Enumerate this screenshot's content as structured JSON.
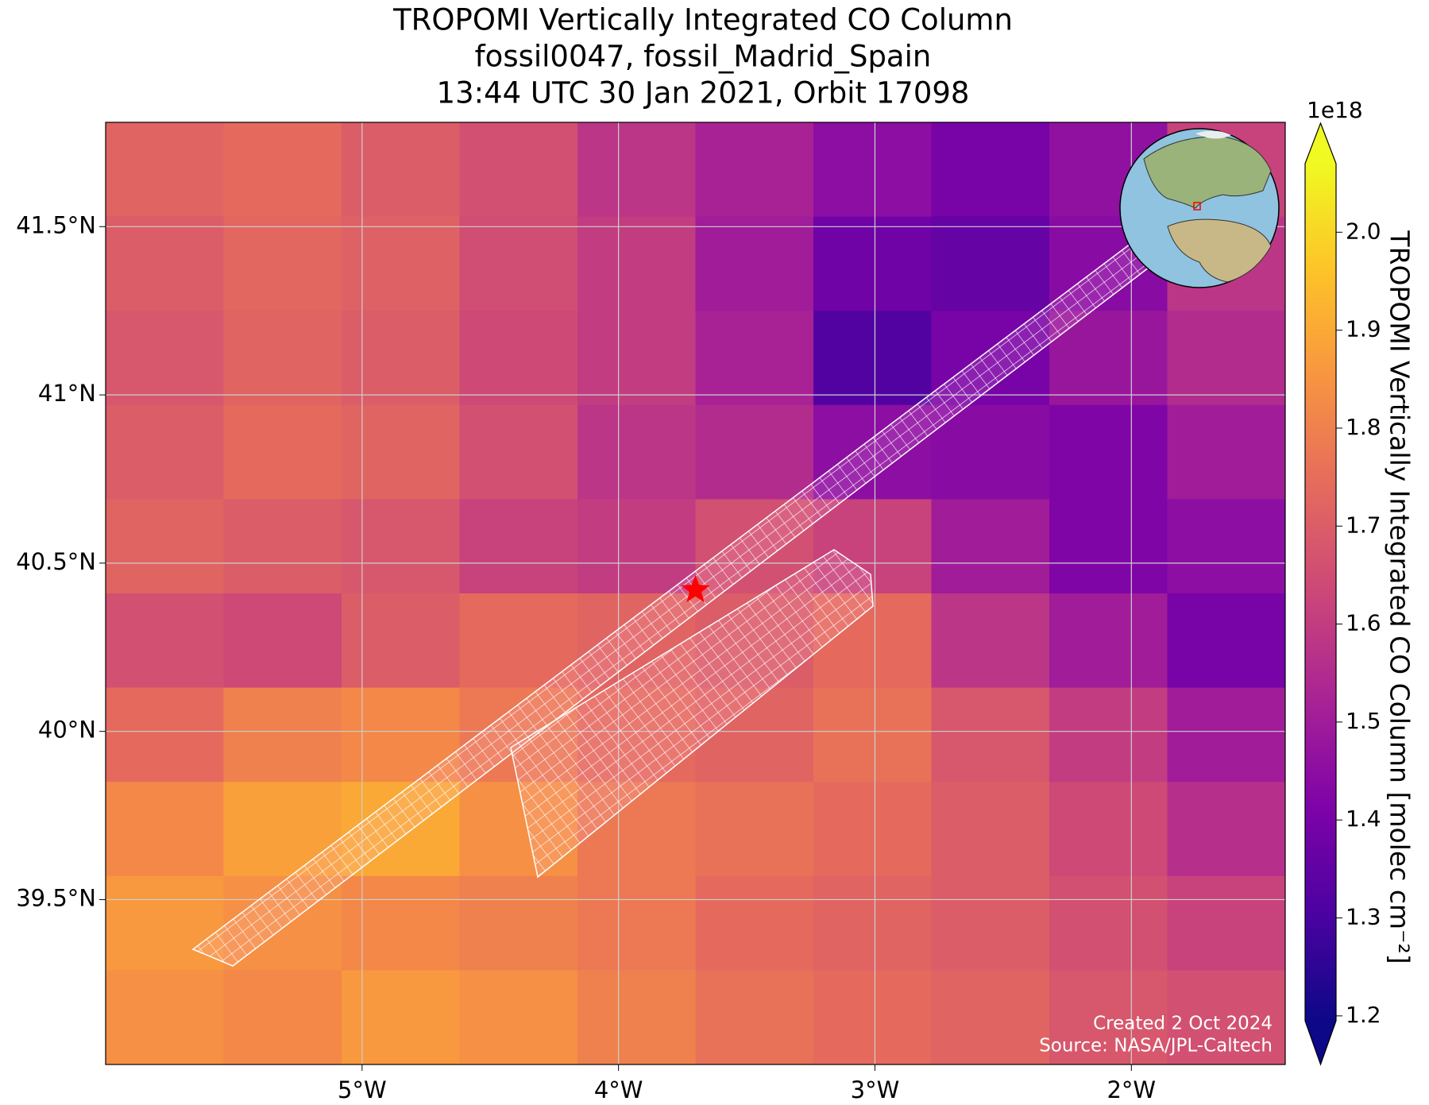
{
  "chart_data": {
    "type": "map",
    "title": [
      "TROPOMI Vertically Integrated CO Column",
      "fossil0047, fossil_Madrid_Spain",
      "13:44 UTC 30 Jan 2021, Orbit 17098"
    ],
    "xlim": [
      -6.0,
      -1.4
    ],
    "ylim": [
      39.01,
      41.81
    ],
    "xticks": [
      {
        "value": -5,
        "label": "5°W"
      },
      {
        "value": -4,
        "label": "4°W"
      },
      {
        "value": -3,
        "label": "3°W"
      },
      {
        "value": -2,
        "label": "2°W"
      }
    ],
    "yticks": [
      {
        "value": 39.5,
        "label": "39.5°N"
      },
      {
        "value": 40,
        "label": "40°N"
      },
      {
        "value": 40.5,
        "label": "40.5°N"
      },
      {
        "value": 41,
        "label": "41°N"
      },
      {
        "value": 41.5,
        "label": "41.5°N"
      }
    ],
    "grid": true,
    "colormap": "plasma",
    "field": {
      "lon_edges": [
        -6.0,
        -5.54,
        -5.08,
        -4.62,
        -4.16,
        -3.7,
        -3.24,
        -2.78,
        -2.32,
        -1.86,
        -1.4
      ],
      "lat_edges": [
        41.81,
        41.53,
        41.25,
        40.97,
        40.69,
        40.41,
        40.13,
        39.85,
        39.57,
        39.29,
        39.01
      ],
      "values": [
        [
          1.72,
          1.74,
          1.7,
          1.66,
          1.58,
          1.52,
          1.45,
          1.4,
          1.46,
          1.62
        ],
        [
          1.7,
          1.73,
          1.71,
          1.65,
          1.6,
          1.5,
          1.38,
          1.36,
          1.44,
          1.58
        ],
        [
          1.68,
          1.72,
          1.7,
          1.64,
          1.6,
          1.52,
          1.32,
          1.4,
          1.48,
          1.55
        ],
        [
          1.7,
          1.74,
          1.72,
          1.66,
          1.58,
          1.55,
          1.45,
          1.44,
          1.42,
          1.5
        ],
        [
          1.72,
          1.7,
          1.68,
          1.62,
          1.6,
          1.66,
          1.62,
          1.5,
          1.42,
          1.45
        ],
        [
          1.66,
          1.64,
          1.7,
          1.74,
          1.72,
          1.7,
          1.74,
          1.58,
          1.5,
          1.4
        ],
        [
          1.74,
          1.8,
          1.82,
          1.78,
          1.74,
          1.72,
          1.76,
          1.68,
          1.6,
          1.5
        ],
        [
          1.82,
          1.88,
          1.9,
          1.84,
          1.78,
          1.76,
          1.74,
          1.7,
          1.64,
          1.56
        ],
        [
          1.86,
          1.84,
          1.82,
          1.8,
          1.78,
          1.74,
          1.72,
          1.7,
          1.66,
          1.62
        ],
        [
          1.84,
          1.82,
          1.86,
          1.84,
          1.8,
          1.76,
          1.74,
          1.72,
          1.68,
          1.66
        ]
      ]
    },
    "site": {
      "lon": -3.7,
      "lat": 40.42,
      "color": "#ff0000"
    },
    "colorbar": {
      "label": "TROPOMI Vertically Integrated CO Column [molec cm⁻²]",
      "offset_text": "1e18",
      "clim": [
        1.195,
        2.07
      ],
      "ticks": [
        1.2,
        1.3,
        1.4,
        1.5,
        1.6,
        1.7,
        1.8,
        1.9,
        {
          "value": 2,
          "label": "2.0"
        }
      ]
    },
    "annotations": [
      "Created 2 Oct 2024",
      "Source: NASA/JPL-Caltech"
    ]
  }
}
